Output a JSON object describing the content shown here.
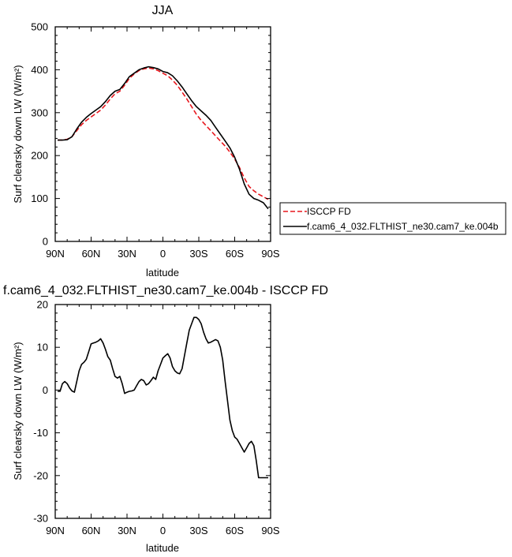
{
  "colors": {
    "obs": "#e8171d",
    "model": "#000000",
    "frame": "#000000"
  },
  "chart_data": [
    {
      "type": "line",
      "title": "JJA",
      "xlabel": "latitude",
      "ylabel": "Surf clearsky down LW (W/m²)",
      "xlim": [
        90,
        -90
      ],
      "ylim": [
        0,
        500
      ],
      "yticks": [
        0,
        100,
        200,
        300,
        400,
        500
      ],
      "ytick_labels": [
        "0",
        "100",
        "200",
        "300",
        "400",
        "500"
      ],
      "xticks": [
        90,
        60,
        30,
        0,
        -30,
        -60,
        -90
      ],
      "xtick_labels": [
        "90N",
        "60N",
        "30N",
        "0",
        "30S",
        "60S",
        "90S"
      ],
      "legend": {
        "placement": "outside-right",
        "entries": [
          "ISCCP FD",
          "f.cam6_4_032.FLTHIST_ne30.cam7_ke.004b"
        ]
      },
      "series": [
        {
          "name": "ISCCP FD",
          "style": "dashed",
          "color": "#e8171d",
          "x": [
            88,
            84,
            80,
            76,
            72,
            68,
            64,
            60,
            56,
            52,
            48,
            44,
            40,
            36,
            32,
            28,
            24,
            20,
            16,
            12,
            8,
            4,
            0,
            -4,
            -8,
            -12,
            -16,
            -20,
            -24,
            -28,
            -32,
            -36,
            -40,
            -44,
            -48,
            -52,
            -56,
            -60,
            -64,
            -68,
            -72,
            -76,
            -80,
            -84,
            -88
          ],
          "y": [
            236,
            236,
            238,
            244,
            258,
            272,
            282,
            290,
            298,
            306,
            318,
            332,
            344,
            350,
            364,
            380,
            390,
            398,
            402,
            404,
            402,
            398,
            392,
            386,
            376,
            364,
            348,
            332,
            314,
            296,
            282,
            270,
            258,
            246,
            234,
            222,
            208,
            192,
            172,
            148,
            128,
            118,
            110,
            104,
            98
          ]
        },
        {
          "name": "f.cam6_4_032.FLTHIST_ne30.cam7_ke.004b",
          "style": "solid",
          "color": "#000000",
          "x": [
            88,
            84,
            80,
            76,
            72,
            68,
            64,
            60,
            56,
            52,
            48,
            44,
            40,
            36,
            32,
            28,
            24,
            20,
            16,
            12,
            8,
            4,
            0,
            -4,
            -8,
            -12,
            -16,
            -20,
            -24,
            -28,
            -32,
            -36,
            -40,
            -44,
            -48,
            -52,
            -56,
            -60,
            -64,
            -68,
            -72,
            -76,
            -80,
            -84,
            -88
          ],
          "y": [
            236,
            236,
            237,
            244,
            262,
            278,
            289,
            298,
            306,
            314,
            326,
            340,
            350,
            354,
            368,
            384,
            392,
            400,
            404,
            407,
            405,
            402,
            396,
            393,
            386,
            374,
            360,
            344,
            328,
            314,
            304,
            294,
            282,
            266,
            250,
            234,
            218,
            196,
            168,
            134,
            110,
            100,
            96,
            90,
            76
          ]
        }
      ]
    },
    {
      "type": "line",
      "title": "f.cam6_4_032.FLTHIST_ne30.cam7_ke.004b - ISCCP FD",
      "xlabel": "latitude",
      "ylabel": "Surf clearsky down LW (W/m²)",
      "xlim": [
        90,
        -90
      ],
      "ylim": [
        -30,
        20
      ],
      "yticks": [
        -30,
        -20,
        -10,
        0,
        10,
        20
      ],
      "ytick_labels": [
        "-30",
        "-20",
        "-10",
        "0",
        "10",
        "20"
      ],
      "xticks": [
        90,
        60,
        30,
        0,
        -30,
        -60,
        -90
      ],
      "xtick_labels": [
        "90N",
        "60N",
        "30N",
        "0",
        "30S",
        "60S",
        "90S"
      ],
      "series": [
        {
          "style": "solid",
          "color": "#000000",
          "x": [
            88,
            86,
            84,
            82,
            80,
            78,
            76,
            74,
            72,
            70,
            68,
            66,
            64,
            62,
            60,
            58,
            56,
            54,
            52,
            50,
            48,
            46,
            44,
            42,
            40,
            38,
            36,
            34,
            32,
            30,
            28,
            26,
            24,
            22,
            20,
            18,
            16,
            14,
            12,
            10,
            8,
            6,
            4,
            2,
            0,
            -2,
            -4,
            -6,
            -8,
            -10,
            -12,
            -14,
            -16,
            -18,
            -20,
            -22,
            -24,
            -26,
            -28,
            -30,
            -32,
            -34,
            -36,
            -38,
            -40,
            -42,
            -44,
            -46,
            -48,
            -50,
            -52,
            -54,
            -56,
            -58,
            -60,
            -62,
            -64,
            -66,
            -68,
            -70,
            -72,
            -74,
            -76,
            -78,
            -80,
            -82,
            -84,
            -86,
            -88
          ],
          "y": [
            -0.3,
            -0.3,
            1.5,
            2.0,
            1.5,
            0.5,
            -0.2,
            -0.5,
            2.0,
            4.5,
            6.0,
            6.5,
            7.2,
            9.0,
            10.8,
            11.0,
            11.2,
            11.5,
            12.0,
            11.0,
            9.5,
            7.8,
            7.0,
            5.0,
            3.2,
            2.8,
            3.2,
            1.5,
            -0.8,
            -0.5,
            -0.3,
            -0.2,
            0.0,
            1.0,
            2.0,
            2.5,
            2.2,
            1.2,
            1.5,
            2.2,
            3.0,
            2.5,
            4.5,
            6.0,
            7.5,
            8.0,
            8.5,
            7.5,
            5.5,
            4.5,
            4.0,
            3.8,
            5.0,
            8.0,
            11.0,
            14.0,
            15.5,
            17.0,
            17.0,
            16.5,
            15.5,
            13.5,
            12.0,
            11.0,
            11.2,
            11.5,
            11.8,
            11.5,
            10.0,
            7.0,
            2.0,
            -2.5,
            -7.0,
            -9.5,
            -11.0,
            -11.5,
            -12.5,
            -13.5,
            -14.5,
            -13.5,
            -12.5,
            -12.0,
            -13.0,
            -16.5,
            -20.5,
            -20.5,
            -20.5,
            -20.5,
            -20.5
          ]
        }
      ]
    }
  ]
}
